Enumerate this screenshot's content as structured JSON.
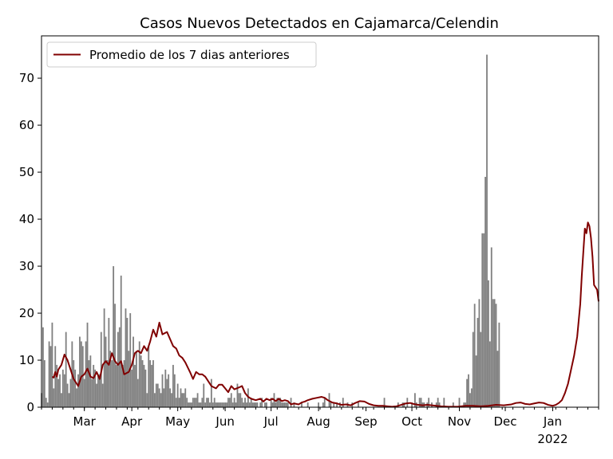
{
  "chart_data": {
    "type": "bar",
    "title": "Casos Nuevos Detectados en Cajamarca/Celendin",
    "xlabel": "",
    "ylabel": "",
    "x_range": [
      "2021-02-01",
      "2022-01-31"
    ],
    "ylim": [
      0,
      79
    ],
    "y_ticks": [
      0,
      10,
      20,
      30,
      40,
      50,
      60,
      70
    ],
    "x_ticks": [
      {
        "date": "2021-03-01",
        "label": "Mar",
        "sublabel": ""
      },
      {
        "date": "2021-04-01",
        "label": "Apr",
        "sublabel": ""
      },
      {
        "date": "2021-05-01",
        "label": "May",
        "sublabel": ""
      },
      {
        "date": "2021-06-01",
        "label": "Jun",
        "sublabel": ""
      },
      {
        "date": "2021-07-01",
        "label": "Jul",
        "sublabel": ""
      },
      {
        "date": "2021-08-01",
        "label": "Aug",
        "sublabel": ""
      },
      {
        "date": "2021-09-01",
        "label": "Sep",
        "sublabel": ""
      },
      {
        "date": "2021-10-01",
        "label": "Oct",
        "sublabel": ""
      },
      {
        "date": "2021-11-01",
        "label": "Nov",
        "sublabel": ""
      },
      {
        "date": "2021-12-01",
        "label": "Dec",
        "sublabel": ""
      },
      {
        "date": "2022-01-01",
        "label": "Jan",
        "sublabel": "2022"
      }
    ],
    "grid": false,
    "legend_position": "top-left",
    "series": [
      {
        "name": "",
        "type": "bar",
        "color": "#808080",
        "start_date": "2021-02-01",
        "values": [
          3,
          17,
          10,
          2,
          1,
          14,
          13,
          18,
          4,
          13,
          9,
          6,
          7,
          3,
          8,
          7,
          16,
          5,
          3,
          6,
          14,
          10,
          8,
          4,
          7,
          15,
          14,
          13,
          6,
          14,
          18,
          10,
          11,
          6,
          9,
          8,
          5,
          7,
          7,
          16,
          5,
          21,
          15,
          10,
          19,
          12,
          10,
          30,
          22,
          9,
          16,
          17,
          28,
          9,
          10,
          21,
          19,
          12,
          20,
          8,
          15,
          9,
          12,
          6,
          14,
          11,
          10,
          9,
          8,
          3,
          13,
          10,
          9,
          10,
          3,
          5,
          5,
          4,
          3,
          7,
          4,
          8,
          6,
          7,
          4,
          3,
          9,
          7,
          2,
          5,
          2,
          4,
          3,
          3,
          4,
          2,
          1,
          1,
          1,
          2,
          2,
          2,
          3,
          1,
          1,
          2,
          5,
          1,
          2,
          2,
          1,
          6,
          1,
          2,
          1,
          1,
          1,
          1,
          1,
          1,
          1,
          1,
          2,
          2,
          3,
          1,
          2,
          1,
          5,
          3,
          3,
          2,
          1,
          2,
          1,
          4,
          1,
          2,
          1,
          1,
          1,
          1,
          0,
          1,
          2,
          0,
          1,
          1,
          0,
          0,
          2,
          1,
          3,
          1,
          2,
          2,
          2,
          1,
          1,
          1,
          1,
          1,
          0,
          2,
          0,
          1,
          0,
          0,
          0,
          0,
          1,
          0,
          0,
          0,
          1,
          0,
          0,
          0,
          0,
          0,
          0,
          1,
          0,
          0,
          1,
          2,
          0,
          0,
          3,
          1,
          0,
          1,
          0,
          1,
          0,
          1,
          0,
          2,
          0,
          0,
          1,
          0,
          0,
          1,
          0,
          0,
          0,
          1,
          0,
          0,
          0,
          0,
          0,
          0,
          0,
          0,
          0,
          0,
          0,
          0,
          0,
          0,
          0,
          0,
          2,
          0,
          0,
          0,
          0,
          0,
          0,
          0,
          0,
          1,
          0,
          0,
          1,
          1,
          0,
          2,
          0,
          0,
          1,
          0,
          3,
          1,
          0,
          2,
          2,
          1,
          1,
          0,
          1,
          2,
          0,
          1,
          0,
          0,
          1,
          2,
          1,
          0,
          0,
          2,
          0,
          0,
          0,
          0,
          0,
          1,
          0,
          0,
          0,
          2,
          0,
          0,
          1,
          1,
          6,
          7,
          3,
          4,
          16,
          22,
          11,
          19,
          23,
          16,
          37,
          37,
          49,
          75,
          27,
          14,
          34,
          23,
          23,
          22,
          12,
          18
        ]
      },
      {
        "name": "Promedio de los 7 dias anteriores",
        "type": "line",
        "color": "#800000",
        "points": [
          [
            "2021-02-08",
            6.5
          ],
          [
            "2021-02-09",
            6.3
          ],
          [
            "2021-02-10",
            7.5
          ],
          [
            "2021-02-11",
            6.5
          ],
          [
            "2021-02-12",
            8
          ],
          [
            "2021-02-14",
            9
          ],
          [
            "2021-02-16",
            11.2
          ],
          [
            "2021-02-18",
            10
          ],
          [
            "2021-02-20",
            8
          ],
          [
            "2021-02-22",
            6
          ],
          [
            "2021-02-25",
            4.5
          ],
          [
            "2021-02-27",
            6.5
          ],
          [
            "2021-03-01",
            7
          ],
          [
            "2021-03-03",
            8.2
          ],
          [
            "2021-03-05",
            6.5
          ],
          [
            "2021-03-07",
            6.2
          ],
          [
            "2021-03-09",
            7.5
          ],
          [
            "2021-03-11",
            6
          ],
          [
            "2021-03-13",
            9
          ],
          [
            "2021-03-15",
            9.8
          ],
          [
            "2021-03-17",
            9
          ],
          [
            "2021-03-19",
            11.5
          ],
          [
            "2021-03-21",
            9.8
          ],
          [
            "2021-03-23",
            9
          ],
          [
            "2021-03-25",
            9.8
          ],
          [
            "2021-03-27",
            7
          ],
          [
            "2021-03-30",
            7.5
          ],
          [
            "2021-04-01",
            9
          ],
          [
            "2021-04-03",
            11.5
          ],
          [
            "2021-04-05",
            12
          ],
          [
            "2021-04-07",
            11.5
          ],
          [
            "2021-04-09",
            13
          ],
          [
            "2021-04-11",
            12
          ],
          [
            "2021-04-13",
            14
          ],
          [
            "2021-04-15",
            16.5
          ],
          [
            "2021-04-17",
            15
          ],
          [
            "2021-04-19",
            18
          ],
          [
            "2021-04-21",
            15.5
          ],
          [
            "2021-04-24",
            16
          ],
          [
            "2021-04-26",
            14.5
          ],
          [
            "2021-04-28",
            13
          ],
          [
            "2021-04-30",
            12.5
          ],
          [
            "2021-05-02",
            11
          ],
          [
            "2021-05-04",
            10.5
          ],
          [
            "2021-05-06",
            9.5
          ],
          [
            "2021-05-09",
            7.5
          ],
          [
            "2021-05-11",
            6
          ],
          [
            "2021-05-13",
            7.5
          ],
          [
            "2021-05-15",
            7
          ],
          [
            "2021-05-17",
            7
          ],
          [
            "2021-05-19",
            6.5
          ],
          [
            "2021-05-21",
            5.5
          ],
          [
            "2021-05-23",
            4.5
          ],
          [
            "2021-05-26",
            4
          ],
          [
            "2021-05-28",
            4.8
          ],
          [
            "2021-05-30",
            4.8
          ],
          [
            "2021-06-01",
            4
          ],
          [
            "2021-06-03",
            3.2
          ],
          [
            "2021-06-05",
            4.5
          ],
          [
            "2021-06-07",
            3.8
          ],
          [
            "2021-06-10",
            4.2
          ],
          [
            "2021-06-12",
            4.5
          ],
          [
            "2021-06-14",
            3
          ],
          [
            "2021-06-16",
            2.2
          ],
          [
            "2021-06-18",
            1.8
          ],
          [
            "2021-06-21",
            1.5
          ],
          [
            "2021-06-24",
            1.8
          ],
          [
            "2021-06-26",
            1.2
          ],
          [
            "2021-06-28",
            1.8
          ],
          [
            "2021-06-30",
            1.5
          ],
          [
            "2021-07-02",
            1.8
          ],
          [
            "2021-07-04",
            1.3
          ],
          [
            "2021-07-06",
            1.8
          ],
          [
            "2021-07-08",
            1.3
          ],
          [
            "2021-07-10",
            1.5
          ],
          [
            "2021-07-12",
            1.3
          ],
          [
            "2021-07-14",
            0.6
          ],
          [
            "2021-07-16",
            0.8
          ],
          [
            "2021-07-19",
            0.6
          ],
          [
            "2021-07-21",
            1
          ],
          [
            "2021-07-23",
            1.2
          ],
          [
            "2021-07-25",
            1.5
          ],
          [
            "2021-07-28",
            1.8
          ],
          [
            "2021-07-31",
            2
          ],
          [
            "2021-08-03",
            2.2
          ],
          [
            "2021-08-05",
            2
          ],
          [
            "2021-08-07",
            1.5
          ],
          [
            "2021-08-10",
            1
          ],
          [
            "2021-08-13",
            0.8
          ],
          [
            "2021-08-16",
            0.5
          ],
          [
            "2021-08-19",
            0.6
          ],
          [
            "2021-08-22",
            0.4
          ],
          [
            "2021-08-25",
            0.9
          ],
          [
            "2021-08-28",
            1.3
          ],
          [
            "2021-08-31",
            1.2
          ],
          [
            "2021-09-03",
            0.7
          ],
          [
            "2021-09-06",
            0.4
          ],
          [
            "2021-09-09",
            0.3
          ],
          [
            "2021-09-12",
            0.3
          ],
          [
            "2021-09-15",
            0.2
          ],
          [
            "2021-09-18",
            0.1
          ],
          [
            "2021-09-21",
            0.2
          ],
          [
            "2021-09-24",
            0.5
          ],
          [
            "2021-09-27",
            0.8
          ],
          [
            "2021-09-30",
            0.9
          ],
          [
            "2021-10-02",
            0.7
          ],
          [
            "2021-10-05",
            0.5
          ],
          [
            "2021-10-08",
            0.4
          ],
          [
            "2021-10-11",
            0.5
          ],
          [
            "2021-10-14",
            0.4
          ],
          [
            "2021-10-17",
            0.3
          ],
          [
            "2021-10-20",
            0.2
          ],
          [
            "2021-10-25",
            0.1
          ],
          [
            "2021-10-31",
            0.1
          ],
          [
            "2021-11-05",
            0.3
          ],
          [
            "2021-11-10",
            0.3
          ],
          [
            "2021-11-15",
            0.2
          ],
          [
            "2021-11-20",
            0.3
          ],
          [
            "2021-11-25",
            0.5
          ],
          [
            "2021-11-30",
            0.4
          ],
          [
            "2021-12-05",
            0.6
          ],
          [
            "2021-12-08",
            0.9
          ],
          [
            "2021-12-11",
            1
          ],
          [
            "2021-12-14",
            0.7
          ],
          [
            "2021-12-17",
            0.6
          ],
          [
            "2021-12-20",
            0.8
          ],
          [
            "2021-12-23",
            1
          ],
          [
            "2021-12-26",
            0.9
          ],
          [
            "2021-12-29",
            0.5
          ],
          [
            "2022-01-01",
            0.3
          ],
          [
            "2022-01-03",
            0.5
          ],
          [
            "2022-01-05",
            0.9
          ],
          [
            "2022-01-07",
            1.5
          ],
          [
            "2022-01-09",
            3
          ],
          [
            "2022-01-11",
            5
          ],
          [
            "2022-01-13",
            8
          ],
          [
            "2022-01-15",
            11
          ],
          [
            "2022-01-17",
            15
          ],
          [
            "2022-01-19",
            22
          ],
          [
            "2022-01-20",
            28
          ],
          [
            "2022-01-21",
            33
          ],
          [
            "2022-01-22",
            38
          ],
          [
            "2022-01-23",
            37
          ],
          [
            "2022-01-24",
            39.3
          ],
          [
            "2022-01-25",
            38.5
          ],
          [
            "2022-01-26",
            36
          ],
          [
            "2022-01-27",
            32
          ],
          [
            "2022-01-28",
            26
          ],
          [
            "2022-01-30",
            25
          ],
          [
            "2022-01-31",
            22.5
          ]
        ]
      }
    ]
  }
}
